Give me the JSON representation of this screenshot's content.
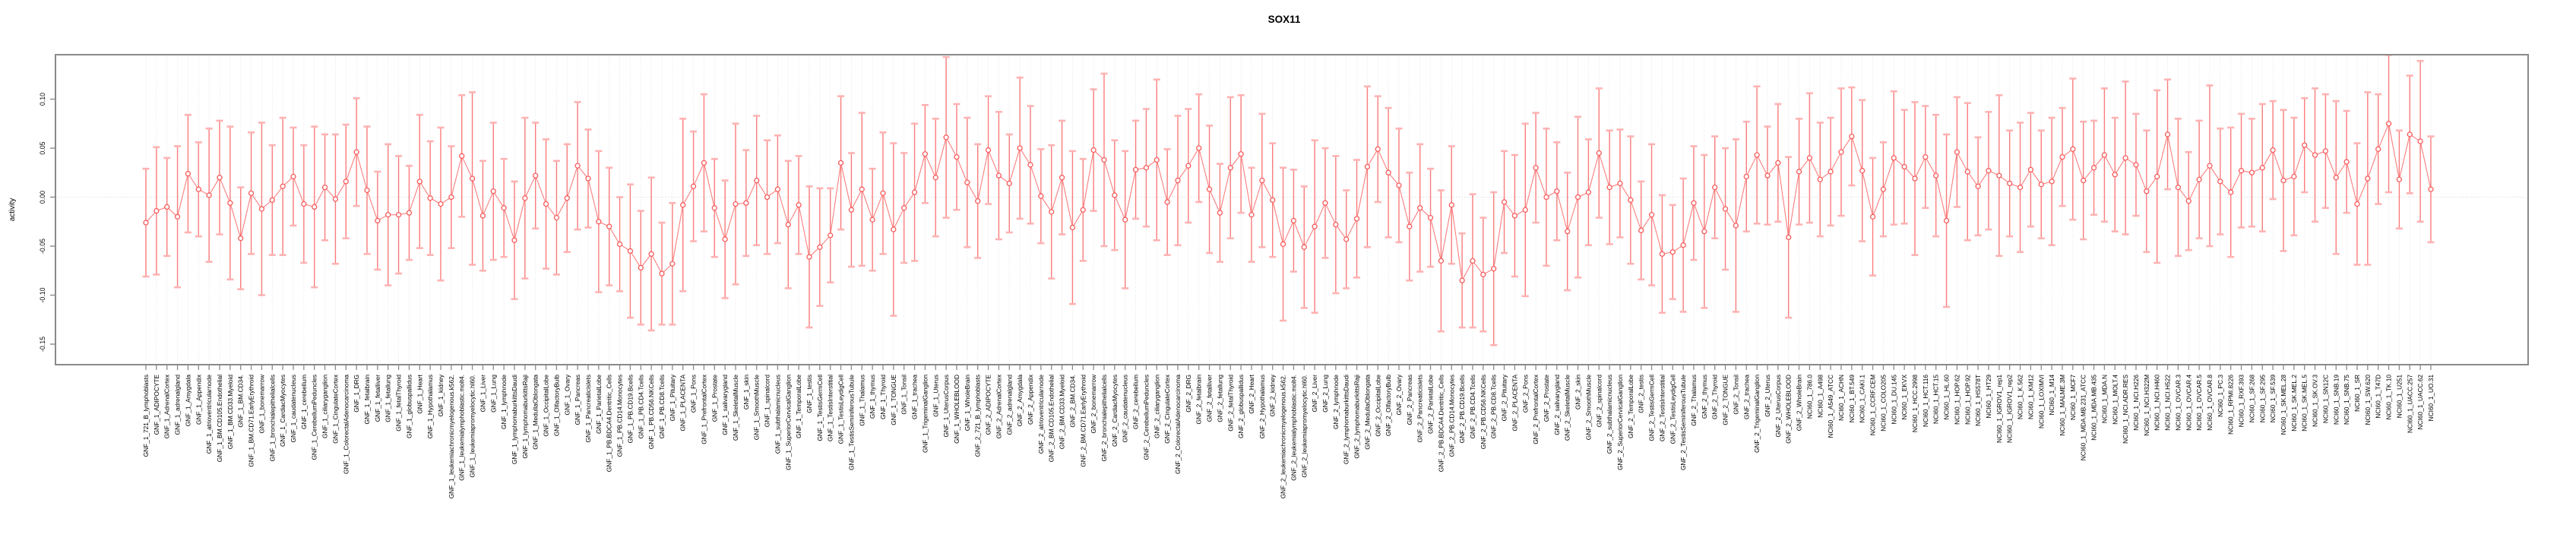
{
  "page": {
    "title": "SOX11"
  },
  "chart_data": {
    "type": "scatter",
    "subtype": "points-with-error-bars",
    "title": "SOX11",
    "xlabel": "",
    "ylabel": "activity",
    "ylim": [
      -0.171,
      0.145
    ],
    "yticks": [
      0.1,
      0.05,
      0.0,
      -0.05,
      -0.1,
      -0.15
    ],
    "ytick_labels": [
      "0.10",
      "0.05",
      "0.00",
      "-0.05",
      "-0.10",
      "-0.15"
    ],
    "grid": "dotted vertical line per category; dotted horizontal line at 0",
    "legend": "none",
    "colors": {
      "point": "#f85c5c",
      "segment": "#fb7e7e",
      "errorbar": "#f97c7c",
      "errorbar_cap": "#ffb2b2",
      "box_border": "#8a8a8a",
      "tick": "#8a8a8a",
      "gridline": "#dedede",
      "zeroline": "#d0d0d0"
    },
    "categories": [
      "GNF_1_721_B_lymphoblasts",
      "GNF_1_ADIPOCYTE",
      "GNF_1_AdrenalCortex",
      "GNF_1_adrenalgland",
      "GNF_1_Amygdala",
      "GNF_1_Appendix",
      "GNF_1_atrioventricularnode",
      "GNF_1_BM.CD105.Endothelial",
      "GNF_1_BM.CD33.Myeloid",
      "GNF_1_BM.CD34.",
      "GNF_1_BM.CD71.EarlyErythroid",
      "GNF_1_bonemarrow",
      "GNF_1_bronchialepithelialcells",
      "GNF_1_CardiacMyocytes",
      "GNF_1_caudatenucleus",
      "GNF_1_cerebellum",
      "GNF_1_CerebellumPeduncles",
      "GNF_1_ciliaryganglion",
      "GNF_1_CingulateCortex",
      "GNF_1_ColorectalAdenocarcinoma",
      "GNF_1_DRG",
      "GNF_1_fetalbrain",
      "GNF_1_fetalliver",
      "GNF_1_fetallung",
      "GNF_1_fetalThyroid",
      "GNF_1_globuspallidus",
      "GNF_1_Heart",
      "GNF_1_Hypothalamus",
      "GNF_1_kidney",
      "GNF_1_leukemiachronicmyelogenous.k562.",
      "GNF_1_leukemialymphoblastic.molt4.",
      "GNF_1_leukemiapromyelocytic.hl60.",
      "GNF_1_Liver",
      "GNF_1_Lung",
      "GNF_1_lymphnode",
      "GNF_1_lymphomaburkittsDaudi",
      "GNF_1_lymphomaburkittsRaji",
      "GNF_1_MedullaOblongata",
      "GNF_1_OccipitalLobe",
      "GNF_1_OlfactoryBulb",
      "GNF_1_Ovary",
      "GNF_1_Pancreas",
      "GNF_1_Pancreaticislets",
      "GNF_1_ParietalLobe",
      "GNF_1_PB.BDCA4.Dentritic_Cells",
      "GNF_1_PB.CD14.Monocytes",
      "GNF_1_PB.CD19.Bcells",
      "GNF_1_PB.CD4.Tcells",
      "GNF_1_PB.CD56.NKCells",
      "GNF_1_PB.CD8.Tcells",
      "GNF_1_Pituitary",
      "GNF_1_PLACENTA",
      "GNF_1_Pons",
      "GNF_1_PrefrontalCortex",
      "GNF_1_Prostate",
      "GNF_1_salivarygland",
      "GNF_1_SkeletalMuscle",
      "GNF_1_skin",
      "GNF_1_SmoothMuscle",
      "GNF_1_spinalcord",
      "GNF_1_subthalamicnucleus",
      "GNF_1_SuperiorCervicalGanglion",
      "GNF_1_TemporalLobe",
      "GNF_1_testis",
      "GNF_1_TestisGermCell",
      "GNF_1_TestisInterstitial",
      "GNF_1_TestisLeydigCell",
      "GNF_1_TestisSeminiferousTubule",
      "GNF_1_Thalamus",
      "GNF_1_thymus",
      "GNF_1_Thyroid",
      "GNF_1_TONGUE",
      "GNF_1_Tonsil",
      "GNF_1_trachea",
      "GNF_1_TrigeminalGanglion",
      "GNF_1_Uterus",
      "GNF_1_UterusCorpus",
      "GNF_1_WHOLEBLOOD",
      "GNF_1_WholeBrain",
      "GNF_2_721_B_lymphoblasts",
      "GNF_2_ADIPOCYTE",
      "GNF_2_AdrenalCortex",
      "GNF_2_adrenalgland",
      "GNF_2_Amygdala",
      "GNF_2_Appendix",
      "GNF_2_atrioventricularnode",
      "GNF_2_BM.CD105.Endothelial",
      "GNF_2_BM.CD33.Myeloid",
      "GNF_2_BM.CD34.",
      "GNF_2_BM.CD71.EarlyErythroid",
      "GNF_2_bonemarrow",
      "GNF_2_bronchialepithelialcells",
      "GNF_2_CardiacMyocytes",
      "GNF_2_caudatenucleus",
      "GNF_2_cerebellum",
      "GNF_2_CerebellumPeduncles",
      "GNF_2_ciliaryganglion",
      "GNF_2_CingulateCortex",
      "GNF_2_ColorectalAdenocarcinoma",
      "GNF_2_DRG",
      "GNF_2_fetalbrain",
      "GNF_2_fetalliver",
      "GNF_2_fetallung",
      "GNF_2_fetalThyroid",
      "GNF_2_globuspallidus",
      "GNF_2_Heart",
      "GNF_2_Hypothalamus",
      "GNF_2_kidney",
      "GNF_2_leukemiachronicmyelogenous.k562.",
      "GNF_2_leukemialymphoblastic.molt4.",
      "GNF_2_leukemiapromyelocytic.hl60.",
      "GNF_2_Liver",
      "GNF_2_Lung",
      "GNF_2_lymphnode",
      "GNF_2_lymphomaburkittsDaudi",
      "GNF_2_lymphomaburkittsRaji",
      "GNF_2_MedullaOblongata",
      "GNF_2_OccipitalLobe",
      "GNF_2_OlfactoryBulb",
      "GNF_2_Ovary",
      "GNF_2_Pancreas",
      "GNF_2_Pancreaticislets",
      "GNF_2_ParietalLobe",
      "GNF_2_PB.BDCA4.Dentritic_Cells",
      "GNF_2_PB.CD14.Monocytes",
      "GNF_2_PB.CD19.Bcells",
      "GNF_2_PB.CD4.Tcells",
      "GNF_2_PB.CD56.NKCells",
      "GNF_2_PB.CD8.Tcells",
      "GNF_2_Pituitary",
      "GNF_2_PLACENTA",
      "GNF_2_Pons",
      "GNF_2_PrefrontalCortex",
      "GNF_2_Prostate",
      "GNF_2_salivarygland",
      "GNF_2_SkeletalMuscle",
      "GNF_2_skin",
      "GNF_2_SmoothMuscle",
      "GNF_2_spinalcord",
      "GNF_2_subthalamicnucleus",
      "GNF_2_SuperiorCervicalGanglion",
      "GNF_2_TemporalLobe",
      "GNF_2_testis",
      "GNF_2_TestisGermCell",
      "GNF_2_TestisInterstitial",
      "GNF_2_TestisLeydigCell",
      "GNF_2_TestisSeminiferousTubule",
      "GNF_2_Thalamus",
      "GNF_2_thymus",
      "GNF_2_Thyroid",
      "GNF_2_TONGUE",
      "GNF_2_Tonsil",
      "GNF_2_trachea",
      "GNF_2_TrigeminalGanglion",
      "GNF_2_Uterus",
      "GNF_2_UterusCorpus",
      "GNF_2_WHOLEBLOOD",
      "GNF_2_WholeBrain",
      "NCI60_1_786.0",
      "NCI60_1_A498",
      "NCI60_1_A549_ATCC",
      "NCI60_1_ACHN",
      "NCI60_1_BT.549",
      "NCI60_1_CAKI.1",
      "NCI60_1_CCRF.CEM",
      "NCI60_1_COLO205",
      "NCI60_1_DU.145",
      "NCI60_1_EKVX",
      "NCI60_1_HCC.2998",
      "NCI60_1_HCT.116",
      "NCI60_1_HCT.15",
      "NCI60_1_HL.60",
      "NCI60_1_HOP.62",
      "NCI60_1_HOP.92",
      "NCI60_1_HS578T",
      "NCI60_1_HT29",
      "NCI60_1_IGROV1_rep1",
      "NCI60_1_IGROV1_rep2",
      "NCI60_1_K.562",
      "NCI60_1_KM12",
      "NCI60_1_LOXIMVI",
      "NCI60_1_M14",
      "NCI60_1_MALME.3M",
      "NCI60_1_MCF7",
      "NCI60_1_MDA.MB.231_ATCC",
      "NCI60_1_MDA.MB.435",
      "NCI60_1_MDA.N",
      "NCI60_1_MOLT.4",
      "NCI60_1_NCI.ADR.RES",
      "NCI60_1_NCI.H226",
      "NCI60_1_NCI.H322M",
      "NCI60_1_NCI.H460",
      "NCI60_1_NCI.H522",
      "NCI60_1_OVCAR.3",
      "NCI60_1_OVCAR.4",
      "NCI60_1_OVCAR.5",
      "NCI60_1_OVCAR.8",
      "NCI60_1_PC.3",
      "NCI60_1_RPMI.8226",
      "NCI60_1_RXF.393",
      "NCI60_1_SF.268",
      "NCI60_1_SF.295",
      "NCI60_1_SF.539",
      "NCI60_1_SK.MEL.28",
      "NCI60_1_SK.MEL.2",
      "NCI60_1_SK.MEL.5",
      "NCI60_1_SK.OV.3",
      "NCI60_1_SN12C",
      "NCI60_1_SNB.19",
      "NCI60_1_SNB.75",
      "NCI60_1_SR",
      "NCI60_1_SW.620",
      "NCI60_1_T47D",
      "NCI60_1_TK.10",
      "NCI60_1_U251",
      "NCI60_1_UACC.257",
      "NCI60_1_UACC.62",
      "NCI60_1_UO.31"
    ],
    "values": [
      -0.026,
      -0.014,
      -0.01,
      -0.02,
      0.024,
      0.008,
      0.002,
      0.02,
      -0.006,
      -0.042,
      0.004,
      -0.012,
      -0.003,
      0.011,
      0.021,
      -0.007,
      -0.01,
      0.01,
      -0.002,
      0.016,
      0.046,
      0.007,
      -0.024,
      -0.018,
      -0.018,
      -0.016,
      0.016,
      -0.001,
      -0.007,
      0.0,
      0.042,
      0.019,
      -0.019,
      0.006,
      -0.011,
      -0.044,
      -0.001,
      0.022,
      -0.007,
      -0.021,
      -0.001,
      0.032,
      0.019,
      -0.025,
      -0.03,
      -0.048,
      -0.055,
      -0.072,
      -0.058,
      -0.078,
      -0.068,
      -0.008,
      0.011,
      0.035,
      -0.011,
      -0.043,
      -0.007,
      -0.006,
      0.017,
      0.0,
      0.008,
      -0.028,
      -0.008,
      -0.061,
      -0.051,
      -0.039,
      0.035,
      -0.013,
      0.008,
      -0.023,
      0.004,
      -0.033,
      -0.011,
      0.005,
      0.044,
      0.02,
      0.061,
      0.041,
      0.015,
      -0.004,
      0.048,
      0.022,
      0.014,
      0.05,
      0.033,
      0.001,
      -0.015,
      0.02,
      -0.031,
      -0.013,
      0.048,
      0.038,
      0.002,
      -0.023,
      0.028,
      0.03,
      0.038,
      -0.005,
      0.017,
      0.032,
      0.05,
      0.008,
      -0.016,
      0.03,
      0.044,
      -0.018,
      0.017,
      -0.003,
      -0.048,
      -0.024,
      -0.051,
      -0.03,
      -0.006,
      -0.028,
      -0.043,
      -0.022,
      0.031,
      0.049,
      0.025,
      0.012,
      -0.03,
      -0.011,
      -0.021,
      -0.065,
      -0.008,
      -0.085,
      -0.065,
      -0.079,
      -0.073,
      -0.005,
      -0.019,
      -0.013,
      0.03,
      0.0,
      0.006,
      -0.035,
      0.0,
      0.005,
      0.045,
      0.01,
      0.014,
      -0.003,
      -0.034,
      -0.018,
      -0.058,
      -0.056,
      -0.049,
      -0.006,
      -0.035,
      0.01,
      -0.012,
      -0.029,
      0.021,
      0.043,
      0.022,
      0.035,
      -0.041,
      0.026,
      0.04,
      0.018,
      0.026,
      0.046,
      0.062,
      0.027,
      -0.02,
      0.008,
      0.04,
      0.031,
      0.019,
      0.041,
      0.022,
      -0.024,
      0.046,
      0.026,
      0.011,
      0.027,
      0.022,
      0.014,
      0.01,
      0.028,
      0.013,
      0.016,
      0.041,
      0.049,
      0.017,
      0.03,
      0.043,
      0.023,
      0.04,
      0.033,
      0.006,
      0.021,
      0.064,
      0.01,
      -0.004,
      0.018,
      0.032,
      0.016,
      0.005,
      0.027,
      0.025,
      0.03,
      0.048,
      0.017,
      0.021,
      0.053,
      0.043,
      0.047,
      0.02,
      0.036,
      -0.007,
      0.019,
      0.049,
      0.075,
      0.018,
      0.064,
      0.057,
      0.008
    ],
    "errors": [
      0.055,
      0.065,
      0.05,
      0.072,
      0.06,
      0.048,
      0.068,
      0.058,
      0.078,
      0.052,
      0.062,
      0.088,
      0.056,
      0.07,
      0.05,
      0.06,
      0.082,
      0.054,
      0.066,
      0.058,
      0.055,
      0.065,
      0.05,
      0.072,
      0.06,
      0.048,
      0.068,
      0.058,
      0.078,
      0.052,
      0.062,
      0.088,
      0.056,
      0.07,
      0.05,
      0.06,
      0.082,
      0.054,
      0.066,
      0.058,
      0.055,
      0.065,
      0.05,
      0.072,
      0.06,
      0.048,
      0.068,
      0.058,
      0.078,
      0.052,
      0.062,
      0.088,
      0.056,
      0.07,
      0.05,
      0.06,
      0.082,
      0.054,
      0.066,
      0.058,
      0.055,
      0.065,
      0.05,
      0.072,
      0.06,
      0.048,
      0.068,
      0.058,
      0.078,
      0.052,
      0.062,
      0.088,
      0.056,
      0.07,
      0.05,
      0.06,
      0.082,
      0.054,
      0.066,
      0.058,
      0.055,
      0.065,
      0.05,
      0.072,
      0.06,
      0.048,
      0.068,
      0.058,
      0.078,
      0.052,
      0.062,
      0.088,
      0.056,
      0.07,
      0.05,
      0.06,
      0.082,
      0.054,
      0.066,
      0.058,
      0.055,
      0.065,
      0.05,
      0.072,
      0.06,
      0.048,
      0.068,
      0.058,
      0.078,
      0.052,
      0.062,
      0.088,
      0.056,
      0.07,
      0.05,
      0.06,
      0.082,
      0.054,
      0.066,
      0.058,
      0.055,
      0.065,
      0.05,
      0.072,
      0.06,
      0.048,
      0.068,
      0.058,
      0.078,
      0.052,
      0.062,
      0.088,
      0.056,
      0.07,
      0.05,
      0.06,
      0.082,
      0.054,
      0.066,
      0.058,
      0.055,
      0.065,
      0.05,
      0.072,
      0.06,
      0.048,
      0.068,
      0.058,
      0.078,
      0.052,
      0.062,
      0.088,
      0.056,
      0.07,
      0.05,
      0.06,
      0.082,
      0.054,
      0.066,
      0.058,
      0.055,
      0.065,
      0.05,
      0.072,
      0.06,
      0.048,
      0.068,
      0.058,
      0.078,
      0.052,
      0.062,
      0.088,
      0.056,
      0.07,
      0.05,
      0.06,
      0.082,
      0.054,
      0.066,
      0.058,
      0.055,
      0.065,
      0.05,
      0.072,
      0.06,
      0.048,
      0.068,
      0.058,
      0.078,
      0.052,
      0.062,
      0.088,
      0.056,
      0.07,
      0.05,
      0.06,
      0.082,
      0.054,
      0.066,
      0.058,
      0.055,
      0.065,
      0.05,
      0.072,
      0.06,
      0.048,
      0.068,
      0.058,
      0.078,
      0.052,
      0.062,
      0.088,
      0.056,
      0.07,
      0.05,
      0.06,
      0.082,
      0.054
    ]
  }
}
